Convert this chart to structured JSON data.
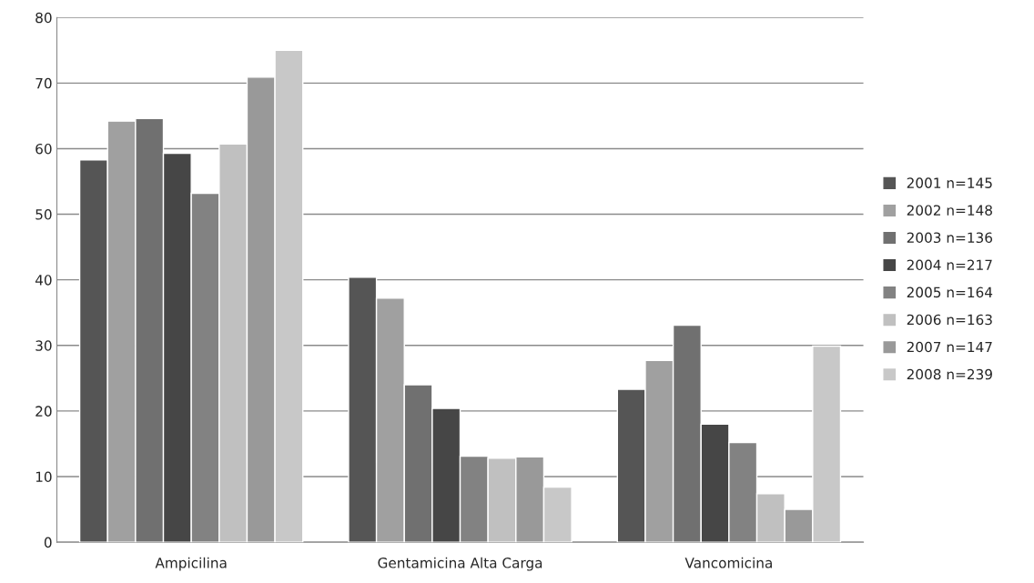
{
  "chart_data": {
    "type": "bar",
    "categories": [
      "Ampicilina",
      "Gentamicina Alta Carga",
      "Vancomicina"
    ],
    "series": [
      {
        "name": "2001 n=145",
        "color": "#555555",
        "values": [
          58.3,
          40.4,
          23.3
        ]
      },
      {
        "name": "2002 n=148",
        "color": "#a0a0a0",
        "values": [
          64.2,
          37.2,
          27.7
        ]
      },
      {
        "name": "2003 n=136",
        "color": "#707070",
        "values": [
          64.6,
          24.0,
          33.1
        ]
      },
      {
        "name": "2004 n=217",
        "color": "#464646",
        "values": [
          59.3,
          20.4,
          18.0
        ]
      },
      {
        "name": "2005 n=164",
        "color": "#828282",
        "values": [
          53.2,
          13.1,
          15.2
        ]
      },
      {
        "name": "2006 n=163",
        "color": "#c0c0c0",
        "values": [
          60.7,
          12.8,
          7.4
        ]
      },
      {
        "name": "2007 n=147",
        "color": "#999999",
        "values": [
          70.9,
          13.0,
          5.0
        ]
      },
      {
        "name": "2008 n=239",
        "color": "#c8c8c8",
        "values": [
          75.0,
          8.4,
          29.9
        ]
      }
    ],
    "ylim": [
      0,
      80
    ],
    "yticks": [
      0,
      10,
      20,
      30,
      40,
      50,
      60,
      70,
      80
    ],
    "grid": "y",
    "legend": "right"
  }
}
